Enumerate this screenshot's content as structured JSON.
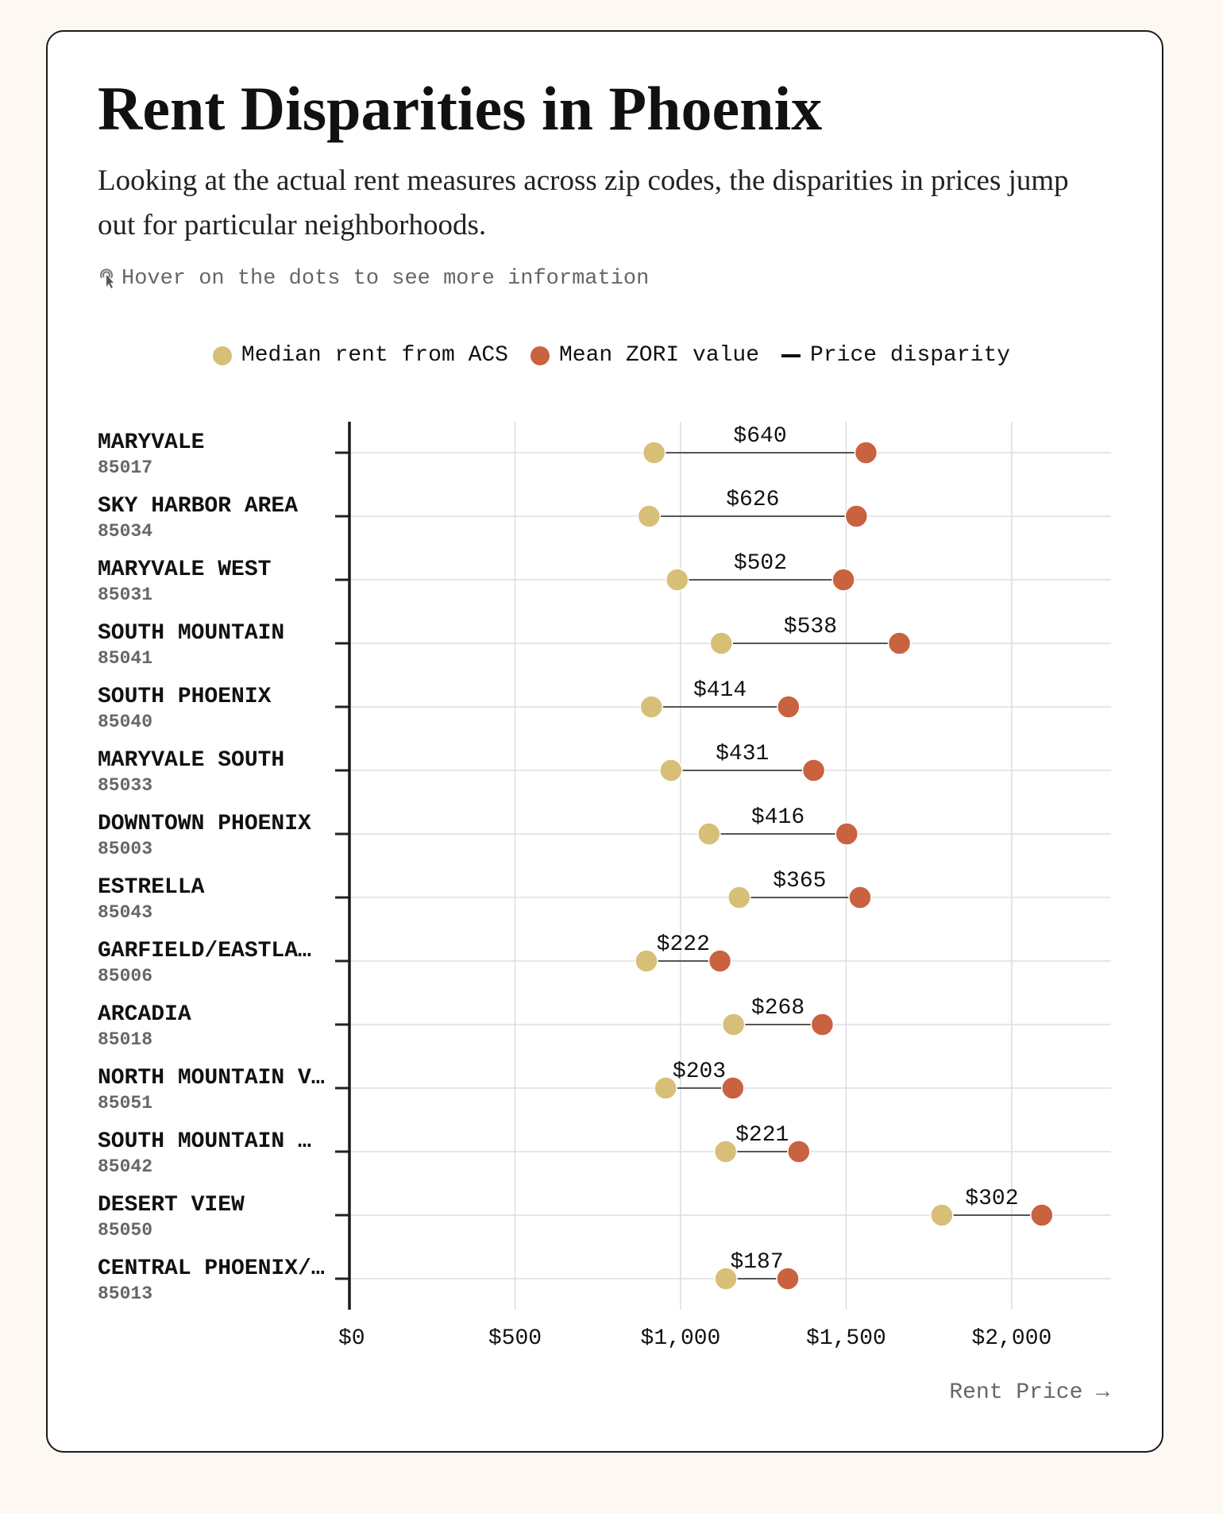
{
  "header": {
    "title": "Rent Disparities in Phoenix",
    "subtitle": "Looking at the actual rent measures across zip codes, the disparities in prices jump out for particular neighborhoods.",
    "hint": "Hover on the dots to see more information"
  },
  "legend": {
    "acs": "Median rent from ACS",
    "zori": "Mean ZORI value",
    "disparity": "Price disparity"
  },
  "colors": {
    "acs": "#d8bf78",
    "zori": "#c8623f",
    "line": "#555555"
  },
  "chart_data": {
    "type": "dumbbell",
    "xlabel": "Rent Price →",
    "xlim": [
      0,
      2300
    ],
    "xticks": [
      0,
      500,
      1000,
      1500,
      2000
    ],
    "xtick_labels": [
      "$0",
      "$500",
      "$1,000",
      "$1,500",
      "$2,000"
    ],
    "grid": true,
    "rows": [
      {
        "name": "MARYVALE",
        "zip": "85017",
        "acs": 920,
        "zori": 1560,
        "label": "$640"
      },
      {
        "name": "SKY HARBOR AREA",
        "zip": "85034",
        "acs": 905,
        "zori": 1531,
        "label": "$626"
      },
      {
        "name": "MARYVALE WEST",
        "zip": "85031",
        "acs": 990,
        "zori": 1492,
        "label": "$502"
      },
      {
        "name": "SOUTH MOUNTAIN",
        "zip": "85041",
        "acs": 1123,
        "zori": 1661,
        "label": "$538"
      },
      {
        "name": "SOUTH PHOENIX",
        "zip": "85040",
        "acs": 912,
        "zori": 1326,
        "label": "$414"
      },
      {
        "name": "MARYVALE SOUTH",
        "zip": "85033",
        "acs": 971,
        "zori": 1402,
        "label": "$431"
      },
      {
        "name": "DOWNTOWN PHOENIX",
        "zip": "85003",
        "acs": 1086,
        "zori": 1502,
        "label": "$416"
      },
      {
        "name": "ESTRELLA",
        "zip": "85043",
        "acs": 1177,
        "zori": 1542,
        "label": "$365"
      },
      {
        "name": "GARFIELD/EASTLA…",
        "zip": "85006",
        "acs": 897,
        "zori": 1119,
        "label": "$222"
      },
      {
        "name": "ARCADIA",
        "zip": "85018",
        "acs": 1160,
        "zori": 1428,
        "label": "$268"
      },
      {
        "name": "NORTH MOUNTAIN V…",
        "zip": "85051",
        "acs": 955,
        "zori": 1158,
        "label": "$203"
      },
      {
        "name": "SOUTH MOUNTAIN …",
        "zip": "85042",
        "acs": 1136,
        "zori": 1357,
        "label": "$221"
      },
      {
        "name": "DESERT VIEW",
        "zip": "85050",
        "acs": 1789,
        "zori": 2091,
        "label": "$302"
      },
      {
        "name": "CENTRAL PHOENIX/…",
        "zip": "85013",
        "acs": 1137,
        "zori": 1324,
        "label": "$187"
      }
    ]
  }
}
